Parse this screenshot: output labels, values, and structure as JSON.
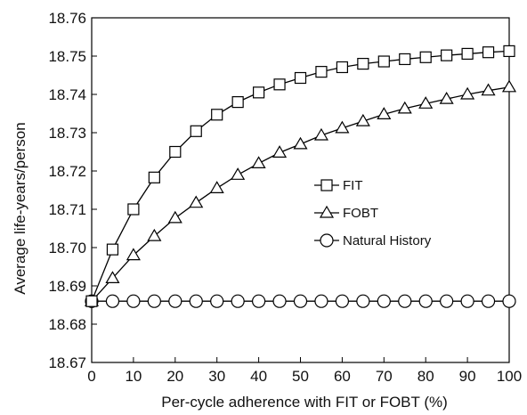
{
  "chart_data": {
    "type": "line",
    "title": "",
    "xlabel": "Per-cycle adherence with FIT or FOBT (%)",
    "ylabel": "Average life-years/person",
    "xlim": [
      0,
      100
    ],
    "ylim": [
      18.67,
      18.76
    ],
    "xticks": [
      0,
      10,
      20,
      30,
      40,
      50,
      60,
      70,
      80,
      90,
      100
    ],
    "yticks": [
      18.67,
      18.68,
      18.69,
      18.7,
      18.71,
      18.72,
      18.73,
      18.74,
      18.75,
      18.76
    ],
    "xtick_labels": [
      "0",
      "10",
      "20",
      "30",
      "40",
      "50",
      "60",
      "70",
      "80",
      "90",
      "100"
    ],
    "ytick_labels": [
      "18.67",
      "18.68",
      "18.69",
      "18.70",
      "18.71",
      "18.72",
      "18.73",
      "18.74",
      "18.75",
      "18.76"
    ],
    "grid": false,
    "legend_position": "center-right",
    "x": [
      0,
      5,
      10,
      15,
      20,
      25,
      30,
      35,
      40,
      45,
      50,
      55,
      60,
      65,
      70,
      75,
      80,
      85,
      90,
      95,
      100
    ],
    "series": [
      {
        "name": "FIT",
        "marker": "square",
        "values": [
          18.686,
          18.6995,
          18.71,
          18.7183,
          18.725,
          18.7304,
          18.7347,
          18.738,
          18.7405,
          18.7426,
          18.7443,
          18.7459,
          18.7471,
          18.748,
          18.7486,
          18.7492,
          18.7497,
          18.7502,
          18.7506,
          18.751,
          18.7513
        ]
      },
      {
        "name": "FOBT",
        "marker": "triangle",
        "values": [
          18.686,
          18.692,
          18.698,
          18.703,
          18.7077,
          18.7117,
          18.7155,
          18.719,
          18.722,
          18.7248,
          18.727,
          18.7293,
          18.7312,
          18.733,
          18.7348,
          18.7363,
          18.7376,
          18.7388,
          18.74,
          18.741,
          18.7419
        ]
      },
      {
        "name": "Natural History",
        "marker": "circle",
        "values": [
          18.686,
          18.686,
          18.686,
          18.686,
          18.686,
          18.686,
          18.686,
          18.686,
          18.686,
          18.686,
          18.686,
          18.686,
          18.686,
          18.686,
          18.686,
          18.686,
          18.686,
          18.686,
          18.686,
          18.686,
          18.686
        ]
      }
    ]
  }
}
